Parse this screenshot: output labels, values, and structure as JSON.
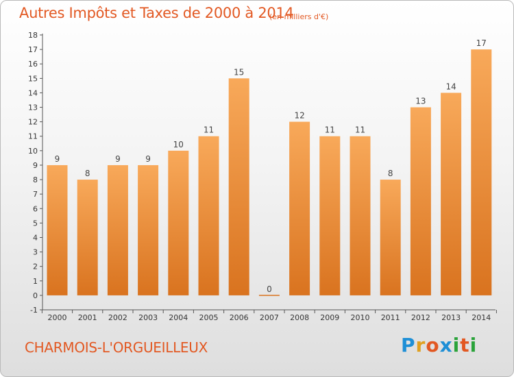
{
  "header": {
    "title": "Autres Impôts et Taxes de 2000 à 2014",
    "subtitle": "(en milliers d'€)"
  },
  "footer": {
    "commune": "CHARMOIS-L'ORGUEILLEUX",
    "brand": "Proxiti"
  },
  "colors": {
    "accent": "#e25822",
    "bar_top": "#f8a95a",
    "bar_bottom": "#d9731f",
    "brand_letters": [
      "#1e8fd6",
      "#e0a020",
      "#e25822",
      "#1e8fd6",
      "#2aa33a",
      "#e25822",
      "#2aa33a"
    ]
  },
  "chart_data": {
    "type": "bar",
    "categories": [
      "2000",
      "2001",
      "2002",
      "2003",
      "2004",
      "2005",
      "2006",
      "2007",
      "2008",
      "2009",
      "2010",
      "2011",
      "2012",
      "2013",
      "2014"
    ],
    "values": [
      9,
      8,
      9,
      9,
      10,
      11,
      15,
      0,
      12,
      11,
      11,
      8,
      13,
      14,
      17
    ],
    "data_labels": [
      "9",
      "8",
      "9",
      "9",
      "10",
      "11",
      "15",
      "0",
      "12",
      "11",
      "11",
      "8",
      "13",
      "14",
      "17"
    ],
    "yticks": [
      "-1",
      "0",
      "1",
      "2",
      "3",
      "4",
      "5",
      "6",
      "7",
      "8",
      "9",
      "10",
      "11",
      "12",
      "13",
      "14",
      "15",
      "16",
      "17",
      "18"
    ],
    "ylim": [
      -1,
      18
    ],
    "grid": false,
    "legend": "none"
  }
}
